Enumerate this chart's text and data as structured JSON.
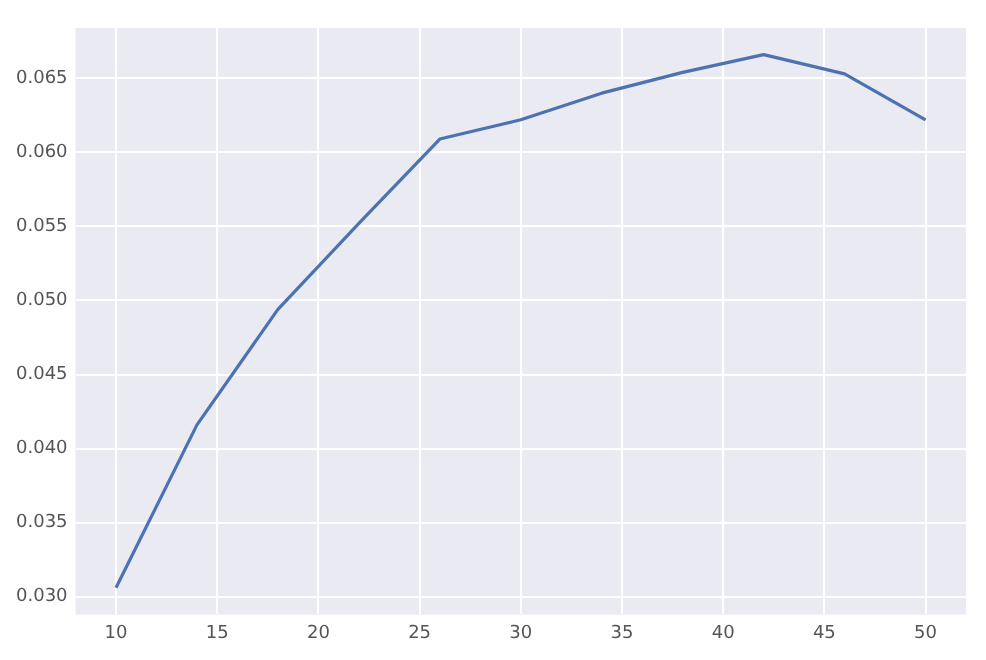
{
  "chart_data": {
    "type": "line",
    "x": [
      10,
      14,
      18,
      22,
      26,
      30,
      34,
      38,
      42,
      46,
      50
    ],
    "series": [
      {
        "color": "#4c72b0",
        "values": [
          0.0306,
          0.0416,
          0.0494,
          0.0552,
          0.0609,
          0.0622,
          0.064,
          0.0654,
          0.0666,
          0.0653,
          0.0622
        ]
      }
    ],
    "xlim": [
      8,
      52
    ],
    "ylim": [
      0.0288,
      0.0684
    ],
    "xticks": [
      10,
      15,
      20,
      25,
      30,
      35,
      40,
      45,
      50
    ],
    "yticks": [
      {
        "value": 0.03,
        "label": "0.030"
      },
      {
        "value": 0.035,
        "label": "0.035"
      },
      {
        "value": 0.04,
        "label": "0.040"
      },
      {
        "value": 0.045,
        "label": "0.045"
      },
      {
        "value": 0.05,
        "label": "0.050"
      },
      {
        "value": 0.055,
        "label": "0.055"
      },
      {
        "value": 0.06,
        "label": "0.060"
      },
      {
        "value": 0.065,
        "label": "0.065"
      }
    ],
    "grid": true,
    "marker": "none",
    "line_style": "solid"
  }
}
